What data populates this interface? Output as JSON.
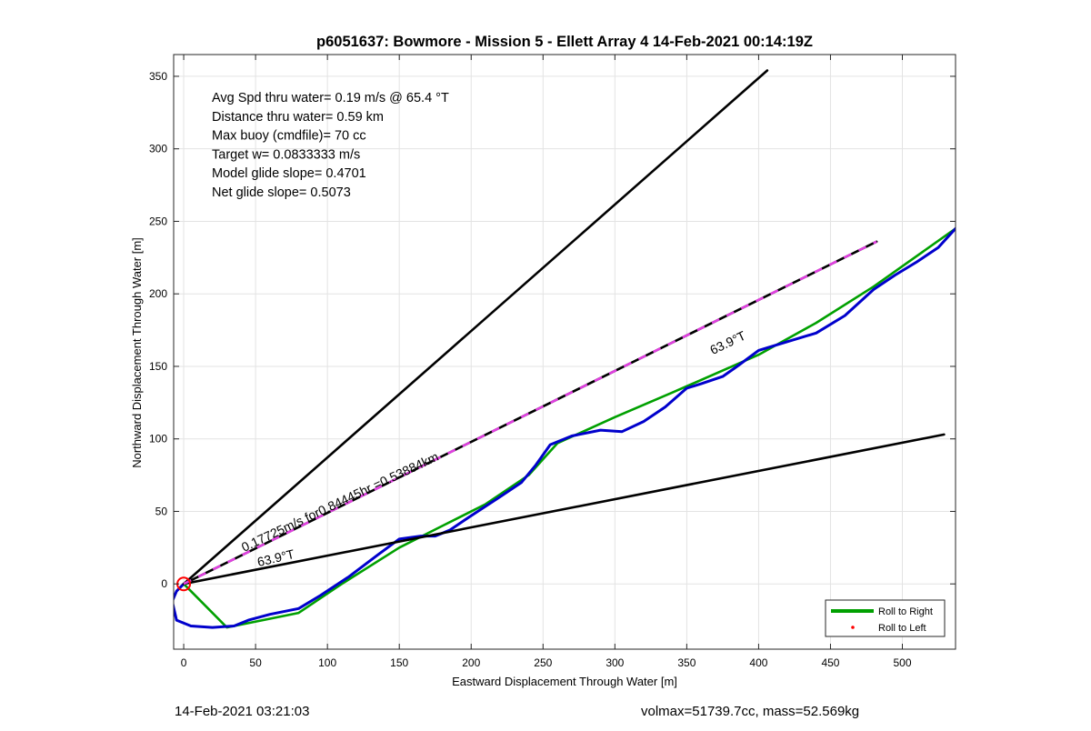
{
  "chart_data": {
    "type": "line",
    "title": "p6051637: Bowmore - Mission 5 - Ellett Array 4 14-Feb-2021 00:14:19Z",
    "xlabel": "Eastward Displacement Through Water [m]",
    "ylabel": "Northward Displacement Through Water [m]",
    "xlim": [
      -7,
      537
    ],
    "ylim": [
      -45,
      365
    ],
    "xticks": [
      0,
      50,
      100,
      150,
      200,
      250,
      300,
      350,
      400,
      450,
      500
    ],
    "yticks": [
      0,
      50,
      100,
      150,
      200,
      250,
      300,
      350
    ],
    "grid": true,
    "legend_position": "bottom-right",
    "legend": [
      {
        "label": "Roll to Right",
        "color": "#00a000",
        "marker": "line"
      },
      {
        "label": "Roll to Left",
        "color": "#ff0000",
        "marker": "dot"
      }
    ],
    "info_lines": [
      "Avg Spd thru water=  0.19 m/s @  65.4 °T",
      "Distance thru water=  0.59 km",
      "Max buoy (cmdfile)= 70 cc",
      "Target w= 0.0833333 m/s",
      "Model glide slope= 0.4701",
      "Net glide slope= 0.5073"
    ],
    "annotations": [
      {
        "text": "0.17725m/s for0.84445hr =0.53884km",
        "x": 42,
        "y": 22,
        "angle_deg": 25.3
      },
      {
        "text": "63.9°T",
        "x": 52,
        "y": 12,
        "angle_deg": 13
      },
      {
        "text": "63.9°T",
        "x": 368,
        "y": 158,
        "angle_deg": 25.3
      }
    ],
    "series": [
      {
        "name": "Roll to Right",
        "color": "#00a000",
        "x": [
          0,
          30,
          80,
          110,
          150,
          180,
          210,
          240,
          260,
          300,
          340,
          400,
          440,
          480,
          537
        ],
        "y": [
          0,
          -30,
          -20,
          0,
          25,
          40,
          55,
          75,
          97,
          115,
          132,
          158,
          180,
          205,
          245
        ]
      },
      {
        "color": "#0000cc",
        "x": [
          0,
          -5,
          -8,
          -5,
          5,
          20,
          35,
          45,
          60,
          80,
          95,
          115,
          135,
          150,
          165,
          175,
          185,
          200,
          220,
          235,
          245,
          255,
          270,
          290,
          305,
          320,
          335,
          350,
          360,
          375,
          385,
          400,
          420,
          440,
          460,
          480,
          495,
          510,
          525,
          537
        ],
        "y": [
          0,
          -5,
          -12,
          -25,
          -29,
          -30,
          -29,
          -25,
          -21,
          -17,
          -8,
          5,
          20,
          31,
          33,
          33,
          37,
          47,
          60,
          70,
          82,
          96,
          102,
          106,
          105,
          112,
          122,
          135,
          138,
          143,
          150,
          161,
          167,
          173,
          185,
          203,
          213,
          222,
          232,
          245
        ]
      },
      {
        "color": "#000000",
        "x": [
          0,
          406
        ],
        "y": [
          0,
          354
        ]
      },
      {
        "color": "#000000",
        "x": [
          0,
          529
        ],
        "y": [
          0,
          103
        ]
      },
      {
        "color": "#000000",
        "dash_color": "#e040e0",
        "x": [
          0,
          482
        ],
        "y": [
          0,
          236
        ]
      }
    ],
    "start_marker": {
      "x": 0,
      "y": 0,
      "color": "#ff0000"
    }
  },
  "footer": {
    "left": "14-Feb-2021 03:21:03",
    "right": "volmax=51739.7cc, mass=52.569kg"
  }
}
